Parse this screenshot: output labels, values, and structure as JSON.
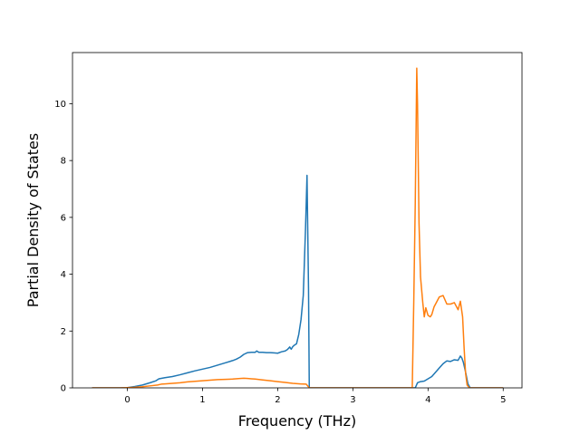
{
  "chart_data": {
    "type": "line",
    "title": "",
    "xlabel": "Frequency (THz)",
    "ylabel": "Partial Density of States",
    "xlim": [
      -0.73,
      5.25
    ],
    "ylim": [
      0,
      11.8
    ],
    "xticks": [
      0,
      1,
      2,
      3,
      4,
      5
    ],
    "yticks": [
      0,
      2,
      4,
      6,
      8,
      10
    ],
    "grid": false,
    "legend": "none",
    "series": [
      {
        "color": "#1f77b4",
        "x": [
          -0.47,
          -0.3,
          -0.1,
          0.0,
          0.1,
          0.2,
          0.3,
          0.38,
          0.42,
          0.5,
          0.6,
          0.7,
          0.8,
          0.9,
          1.0,
          1.1,
          1.2,
          1.3,
          1.4,
          1.45,
          1.5,
          1.55,
          1.6,
          1.65,
          1.7,
          1.72,
          1.75,
          1.8,
          1.85,
          1.9,
          1.95,
          2.0,
          2.05,
          2.1,
          2.13,
          2.16,
          2.18,
          2.2,
          2.22,
          2.25,
          2.28,
          2.31,
          2.34,
          2.37,
          2.39,
          2.41,
          2.42,
          2.6,
          3.0,
          3.4,
          3.7,
          3.83,
          3.86,
          3.9,
          3.95,
          4.0,
          4.05,
          4.1,
          4.15,
          4.2,
          4.25,
          4.3,
          4.35,
          4.4,
          4.43,
          4.45,
          4.47,
          4.5,
          4.53,
          4.56,
          4.7,
          4.85,
          5.0
        ],
        "y": [
          0.0,
          0.0,
          0.0,
          0.01,
          0.05,
          0.1,
          0.18,
          0.25,
          0.32,
          0.36,
          0.4,
          0.46,
          0.53,
          0.6,
          0.66,
          0.72,
          0.8,
          0.88,
          0.96,
          1.01,
          1.08,
          1.18,
          1.24,
          1.25,
          1.25,
          1.3,
          1.25,
          1.25,
          1.24,
          1.24,
          1.23,
          1.22,
          1.27,
          1.3,
          1.35,
          1.44,
          1.36,
          1.45,
          1.5,
          1.55,
          1.88,
          2.4,
          3.25,
          5.6,
          7.48,
          3.5,
          0.0,
          0.0,
          0.0,
          0.0,
          0.0,
          0.0,
          0.18,
          0.22,
          0.24,
          0.32,
          0.4,
          0.55,
          0.7,
          0.85,
          0.95,
          0.93,
          0.99,
          0.97,
          1.12,
          1.05,
          0.9,
          0.55,
          0.15,
          0.0,
          0.0,
          0.0,
          0.0
        ]
      },
      {
        "color": "#ff7f0e",
        "x": [
          -0.47,
          -0.3,
          -0.1,
          0.0,
          0.1,
          0.2,
          0.3,
          0.4,
          0.45,
          0.5,
          0.6,
          0.7,
          0.8,
          0.9,
          1.0,
          1.1,
          1.2,
          1.3,
          1.4,
          1.5,
          1.55,
          1.6,
          1.65,
          1.7,
          1.8,
          1.9,
          2.0,
          2.1,
          2.2,
          2.3,
          2.38,
          2.42,
          2.6,
          3.0,
          3.4,
          3.7,
          3.79,
          3.81,
          3.83,
          3.85,
          3.86,
          3.88,
          3.9,
          3.93,
          3.95,
          3.97,
          4.0,
          4.03,
          4.05,
          4.08,
          4.1,
          4.15,
          4.2,
          4.25,
          4.3,
          4.35,
          4.4,
          4.43,
          4.46,
          4.48,
          4.5,
          4.52,
          4.55,
          4.7,
          4.85,
          5.0
        ],
        "y": [
          0.0,
          0.0,
          0.0,
          0.01,
          0.02,
          0.04,
          0.07,
          0.1,
          0.13,
          0.14,
          0.16,
          0.18,
          0.21,
          0.23,
          0.25,
          0.27,
          0.29,
          0.3,
          0.31,
          0.33,
          0.34,
          0.33,
          0.32,
          0.31,
          0.28,
          0.25,
          0.22,
          0.19,
          0.16,
          0.14,
          0.13,
          0.0,
          0.0,
          0.0,
          0.0,
          0.0,
          0.0,
          3.0,
          6.5,
          11.25,
          10.0,
          5.8,
          3.9,
          3.0,
          2.5,
          2.82,
          2.55,
          2.5,
          2.58,
          2.85,
          2.95,
          3.2,
          3.25,
          2.95,
          2.95,
          3.0,
          2.75,
          3.05,
          2.5,
          1.4,
          0.5,
          0.1,
          0.0,
          0.0,
          0.0,
          0.0
        ]
      }
    ]
  }
}
